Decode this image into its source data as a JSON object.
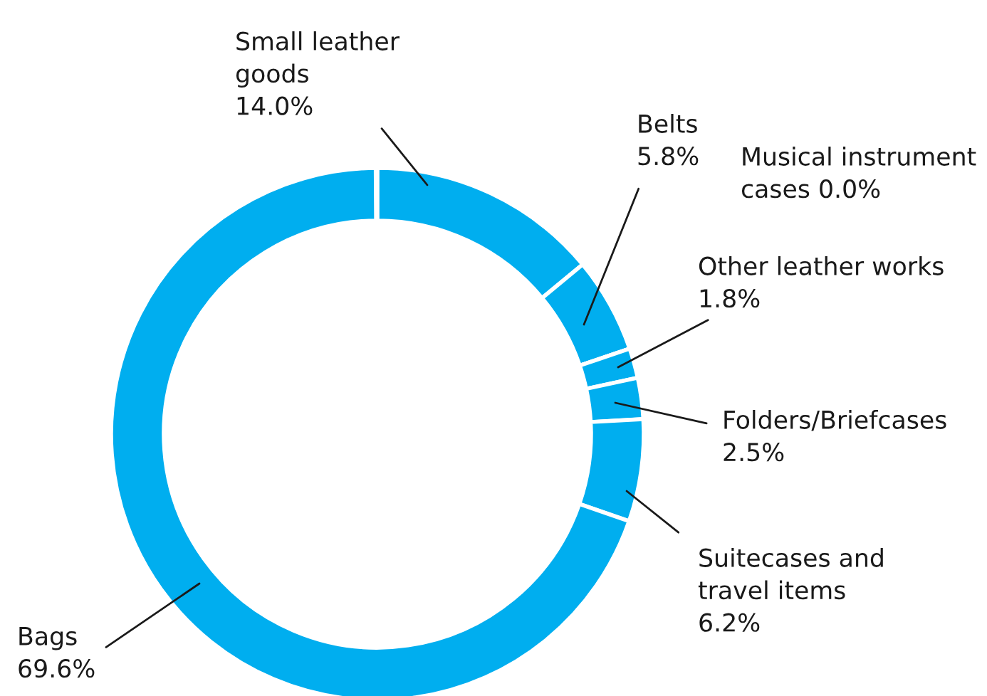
{
  "chart_data": {
    "type": "donut",
    "categories": [
      "Small leather\ngoods",
      "Belts",
      "Musical instrument\ncases",
      "Other leather works",
      "Folders/Briefcases",
      "Suitecases and\ntravel items",
      "Bags"
    ],
    "values": [
      14.0,
      5.8,
      0.0,
      1.8,
      2.5,
      6.2,
      69.6
    ],
    "value_labels": [
      "14.0%",
      "5.8%",
      "0.0%",
      "1.8%",
      "2.5%",
      "6.2%",
      "69.6%"
    ],
    "colors": [
      "#00aeef",
      "#00aeef",
      "#00aeef",
      "#00aeef",
      "#00aeef",
      "#00aeef",
      "#00aeef"
    ]
  }
}
